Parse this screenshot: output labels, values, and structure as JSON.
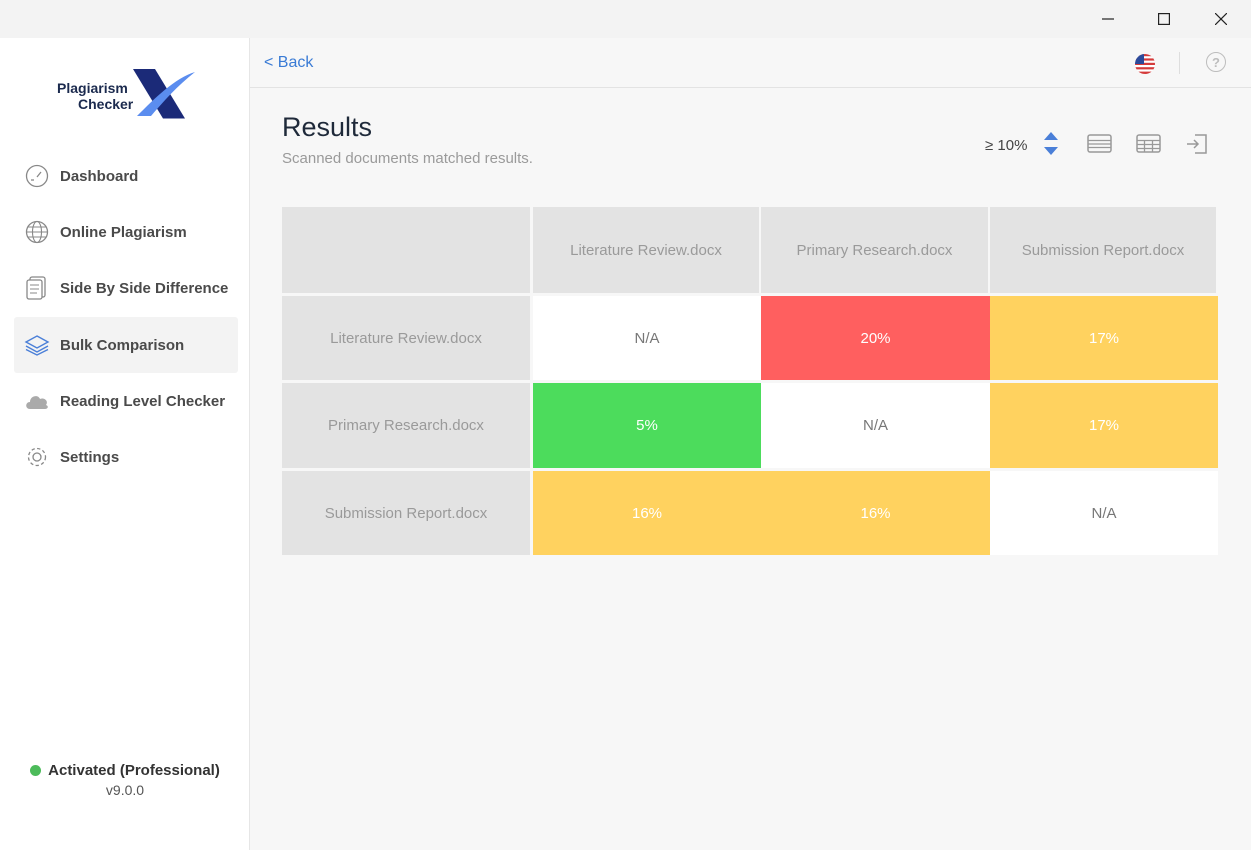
{
  "window": {
    "minimize_icon": "minimize-icon",
    "maximize_icon": "maximize-icon",
    "close_icon": "close-icon"
  },
  "app": {
    "logo_line1": "Plagiarism",
    "logo_line2": "Checker",
    "logo_mark": "X"
  },
  "sidebar": {
    "items": [
      {
        "label": "Dashboard",
        "icon": "dashboard-gauge-icon"
      },
      {
        "label": "Online Plagiarism",
        "icon": "globe-icon"
      },
      {
        "label": "Side By Side Difference",
        "icon": "document-icon"
      },
      {
        "label": "Bulk Comparison",
        "icon": "layers-icon",
        "active": true
      },
      {
        "label": "Reading Level Checker",
        "icon": "cloud-icon"
      },
      {
        "label": "Settings",
        "icon": "gear-icon"
      }
    ],
    "status": "Activated (Professional)",
    "version": "v9.0.0"
  },
  "header": {
    "back_label": "< Back",
    "language_icon": "us-flag-icon",
    "help_icon": "help-icon",
    "help_glyph": "?"
  },
  "results": {
    "title": "Results",
    "subtitle": "Scanned documents matched results.",
    "threshold": "≥ 10%"
  },
  "table": {
    "columns": [
      "Literature Review.docx",
      "Primary Research.docx",
      "Submission Report.docx"
    ],
    "rows": [
      {
        "name": "Literature Review.docx",
        "cells": [
          "N/A",
          "20%",
          "17%"
        ]
      },
      {
        "name": "Primary Research.docx",
        "cells": [
          "5%",
          "N/A",
          "17%"
        ]
      },
      {
        "name": "Submission Report.docx",
        "cells": [
          "16%",
          "16%",
          "N/A"
        ]
      }
    ]
  },
  "colors": {
    "accent": "#3a7bd5",
    "high": "#ff5f5f",
    "medium": "#ffd25f",
    "low": "#4cdc5c",
    "header": "#e3e3e3"
  }
}
